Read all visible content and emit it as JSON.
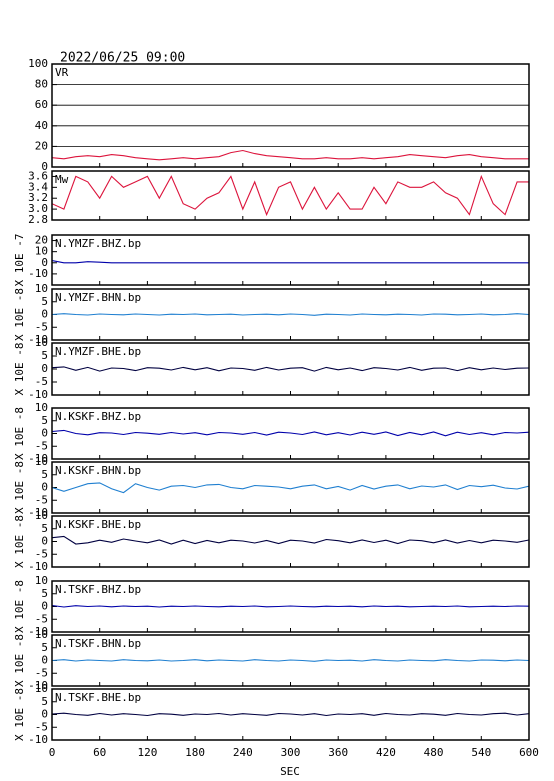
{
  "chart_data": {
    "type": "line",
    "title": "2022/06/25 09:00",
    "x_label": "SEC",
    "xlim": [
      0,
      600
    ],
    "xticks": [
      0,
      60,
      120,
      180,
      240,
      300,
      360,
      420,
      480,
      540,
      600
    ],
    "x": [
      0,
      15,
      30,
      45,
      60,
      75,
      90,
      105,
      120,
      135,
      150,
      165,
      180,
      195,
      210,
      225,
      240,
      255,
      270,
      285,
      300,
      315,
      330,
      345,
      360,
      375,
      390,
      405,
      420,
      435,
      450,
      465,
      480,
      495,
      510,
      525,
      540,
      555,
      570,
      585,
      600
    ],
    "panels": [
      {
        "label": "VR",
        "ylim": [
          0,
          100
        ],
        "yticks": [
          0,
          20,
          40,
          60,
          80,
          100
        ],
        "grid": true,
        "color": "#dc143c",
        "values": [
          9,
          8,
          10,
          11,
          10,
          12,
          11,
          9,
          8,
          7,
          8,
          9,
          8,
          9,
          10,
          14,
          16,
          13,
          11,
          10,
          9,
          8,
          8,
          9,
          8,
          8,
          9,
          8,
          9,
          10,
          12,
          11,
          10,
          9,
          11,
          12,
          10,
          9,
          8,
          8,
          8
        ]
      },
      {
        "label": "Mw",
        "ylim": [
          2.8,
          3.7
        ],
        "yticks": [
          2.8,
          {
            "value": 3,
            "label": "3.0"
          },
          3.2,
          3.4,
          3.6
        ],
        "grid": false,
        "color": "#dc143c",
        "values": [
          3.1,
          3.0,
          3.6,
          3.5,
          3.2,
          3.6,
          3.4,
          3.5,
          3.6,
          3.2,
          3.6,
          3.1,
          3.0,
          3.2,
          3.3,
          3.6,
          3.0,
          3.5,
          2.9,
          3.4,
          3.5,
          3.0,
          3.4,
          3.0,
          3.3,
          3.0,
          3.0,
          3.4,
          3.1,
          3.5,
          3.4,
          3.4,
          3.5,
          3.3,
          3.2,
          2.9,
          3.6,
          3.1,
          2.9,
          3.5,
          3.5
        ]
      },
      {
        "label": "N.YMZF.BHZ.bp",
        "unit": "X 10E -7",
        "ylim": [
          -20,
          25
        ],
        "yticks": [
          -10,
          0,
          10,
          20
        ],
        "grid": false,
        "color": "#0000aa",
        "values": [
          2,
          0,
          0,
          1,
          0.5,
          0,
          0,
          0,
          0,
          0,
          0,
          0,
          0,
          0,
          0,
          0,
          0,
          0,
          0,
          0,
          0,
          0,
          0,
          0,
          0,
          0,
          0,
          0,
          0,
          0,
          0,
          0,
          0,
          0,
          0,
          0,
          0,
          0,
          0,
          0,
          0
        ]
      },
      {
        "label": "N.YMZF.BHN.bp",
        "unit": "X 10E -8",
        "ylim": [
          -10,
          10
        ],
        "yticks": [
          -10,
          -5,
          0,
          5,
          10
        ],
        "grid": false,
        "color": "#1f7fd0",
        "values": [
          0,
          0.3,
          0,
          -0.2,
          0.2,
          0,
          -0.1,
          0.2,
          0,
          -0.2,
          0.1,
          0,
          0.2,
          -0.1,
          0,
          0.1,
          -0.2,
          0,
          0.1,
          -0.1,
          0.2,
          0,
          -0.3,
          0.1,
          0,
          -0.2,
          0.2,
          0,
          -0.1,
          0.1,
          0,
          -0.2,
          0.2,
          0.1,
          -0.1,
          0,
          0.2,
          -0.1,
          0,
          0.3,
          0
        ]
      },
      {
        "label": "N.YMZF.BHE.bp",
        "unit": "X 10E -8",
        "ylim": [
          -10,
          10
        ],
        "yticks": [
          -10,
          -5,
          0,
          5,
          10
        ],
        "grid": false,
        "color": "#000040",
        "values": [
          0.5,
          0.8,
          -0.5,
          0.6,
          -0.8,
          0.4,
          0.2,
          -0.6,
          0.5,
          0.3,
          -0.4,
          0.6,
          -0.3,
          0.5,
          -0.7,
          0.4,
          0.2,
          -0.5,
          0.6,
          -0.4,
          0.3,
          0.5,
          -0.8,
          0.6,
          -0.3,
          0.4,
          -0.6,
          0.5,
          0.2,
          -0.4,
          0.6,
          -0.5,
          0.3,
          0.4,
          -0.6,
          0.5,
          -0.3,
          0.4,
          -0.2,
          0.3,
          0.4
        ]
      },
      {
        "label": "N.KSKF.BHZ.bp",
        "unit": "X 10E -8",
        "ylim": [
          -10,
          10
        ],
        "yticks": [
          -10,
          -5,
          0,
          5,
          10
        ],
        "grid": false,
        "color": "#0000aa",
        "values": [
          0.8,
          1.2,
          0,
          -0.5,
          0.3,
          0.2,
          -0.4,
          0.4,
          0.1,
          -0.3,
          0.4,
          -0.2,
          0.3,
          -0.5,
          0.4,
          0.2,
          -0.3,
          0.4,
          -0.6,
          0.5,
          0.2,
          -0.4,
          0.6,
          -0.5,
          0.3,
          -0.6,
          0.5,
          -0.3,
          0.6,
          -0.8,
          0.4,
          -0.5,
          0.6,
          -0.9,
          0.5,
          -0.4,
          0.3,
          -0.5,
          0.4,
          0.2,
          0.5
        ]
      },
      {
        "label": "N.KSKF.BHN.bp",
        "unit": "X 10E -8",
        "ylim": [
          -10,
          10
        ],
        "yticks": [
          -10,
          -5,
          0,
          5,
          10
        ],
        "grid": false,
        "color": "#1f7fd0",
        "values": [
          0,
          -1.5,
          0,
          1.5,
          1.8,
          -0.5,
          -2,
          1.5,
          0,
          -1,
          0.5,
          0.8,
          0,
          1,
          1.2,
          0,
          -0.5,
          0.8,
          0.5,
          0.2,
          -0.5,
          0.5,
          1,
          -0.5,
          0.4,
          -1,
          0.8,
          -0.6,
          0.5,
          1,
          -0.5,
          0.6,
          0.2,
          1,
          -0.8,
          0.8,
          0.3,
          0.9,
          -0.2,
          -0.6,
          0.5
        ]
      },
      {
        "label": "N.KSKF.BHE.bp",
        "unit": "X 10E -8",
        "ylim": [
          -10,
          10
        ],
        "yticks": [
          -10,
          -5,
          0,
          5,
          10
        ],
        "grid": false,
        "color": "#000040",
        "values": [
          1.5,
          2,
          -1,
          -0.5,
          0.5,
          -0.3,
          1,
          0.2,
          -0.5,
          0.6,
          -1,
          0.5,
          -0.8,
          0.4,
          -0.5,
          0.5,
          0.2,
          -0.6,
          0.4,
          -0.8,
          0.5,
          0.2,
          -0.6,
          0.8,
          0.3,
          -0.5,
          0.6,
          -0.4,
          0.5,
          -0.8,
          0.6,
          0.3,
          -0.5,
          0.6,
          -0.6,
          0.4,
          -0.5,
          0.5,
          0.2,
          -0.3,
          0.6
        ]
      },
      {
        "label": "N.TSKF.BHZ.bp",
        "unit": "X 10E -8",
        "ylim": [
          -10,
          10
        ],
        "yticks": [
          -10,
          -5,
          0,
          5,
          10
        ],
        "grid": false,
        "color": "#0000aa",
        "values": [
          0.4,
          -0.2,
          0.3,
          0,
          0.2,
          -0.1,
          0.2,
          0,
          0.1,
          -0.2,
          0.1,
          0,
          0.2,
          0,
          -0.1,
          0.1,
          0,
          0.2,
          -0.1,
          0,
          0.2,
          0,
          -0.1,
          0.1,
          0,
          0.1,
          -0.1,
          0.2,
          0,
          0.1,
          -0.1,
          0,
          0.1,
          0,
          0.2,
          -0.1,
          0,
          0.1,
          0,
          0.2,
          0.1
        ]
      },
      {
        "label": "N.TSKF.BHN.bp",
        "unit": "X 10E -8",
        "ylim": [
          -10,
          10
        ],
        "yticks": [
          -10,
          -5,
          0,
          5,
          10
        ],
        "grid": false,
        "color": "#1f7fd0",
        "values": [
          0,
          0.3,
          -0.2,
          0.2,
          0,
          -0.2,
          0.3,
          0,
          -0.1,
          0.2,
          -0.2,
          0,
          0.3,
          -0.1,
          0.2,
          0,
          -0.2,
          0.3,
          0,
          -0.2,
          0.2,
          0,
          -0.3,
          0.2,
          0,
          0.1,
          -0.2,
          0.3,
          0,
          -0.2,
          0.2,
          0,
          -0.1,
          0.3,
          0,
          -0.2,
          0.2,
          0.1,
          -0.1,
          0.2,
          0
        ]
      },
      {
        "label": "N.TSKF.BHE.bp",
        "unit": "X 10E -8",
        "ylim": [
          -10,
          10
        ],
        "yticks": [
          -10,
          -5,
          0,
          5,
          10
        ],
        "grid": false,
        "color": "#000040",
        "values": [
          0.2,
          0.5,
          0,
          -0.3,
          0.4,
          -0.2,
          0.3,
          0,
          -0.4,
          0.3,
          0.1,
          -0.3,
          0.2,
          0,
          0.4,
          -0.2,
          0.3,
          0,
          -0.3,
          0.4,
          0.2,
          -0.2,
          0.3,
          -0.4,
          0.2,
          0,
          0.3,
          -0.3,
          0.4,
          0,
          -0.2,
          0.3,
          0.1,
          -0.3,
          0.4,
          0,
          -0.2,
          0.3,
          0.5,
          -0.2,
          0.3
        ]
      }
    ]
  }
}
